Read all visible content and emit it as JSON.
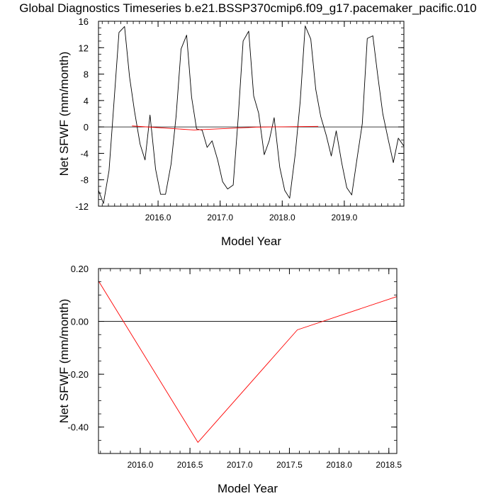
{
  "title": "Global Diagnostics Timeseries b.e21.BSSP370cmip6.f09_g17.pacemaker_pacific.010",
  "colors": {
    "monthly_line": "#000000",
    "annual_line": "#ff0000",
    "zero_line": "#000000"
  },
  "chart_data": [
    {
      "type": "line",
      "xlabel": "Model Year",
      "ylabel": "Net SFWF (mm/month)",
      "xlim": [
        2015.04,
        2019.96
      ],
      "ylim": [
        -12,
        16
      ],
      "xticks": [
        2016.0,
        2017.0,
        2018.0,
        2019.0
      ],
      "xtick_labels": [
        "2016.0",
        "2017.0",
        "2018.0",
        "2019.0"
      ],
      "yticks": [
        -12,
        -8,
        -4,
        0,
        4,
        8,
        12,
        16
      ],
      "ytick_labels": [
        "-12",
        "-8",
        "-4",
        "0",
        "4",
        "8",
        "12",
        "16"
      ],
      "reference_line": 0,
      "grid": false,
      "series": [
        {
          "color": "#000000",
          "x": [
            2015.04,
            2015.12,
            2015.21,
            2015.29,
            2015.37,
            2015.46,
            2015.54,
            2015.62,
            2015.71,
            2015.79,
            2015.87,
            2015.96,
            2016.04,
            2016.12,
            2016.21,
            2016.29,
            2016.37,
            2016.46,
            2016.54,
            2016.62,
            2016.71,
            2016.79,
            2016.87,
            2016.96,
            2017.04,
            2017.12,
            2017.21,
            2017.29,
            2017.37,
            2017.46,
            2017.54,
            2017.62,
            2017.71,
            2017.79,
            2017.87,
            2017.96,
            2018.04,
            2018.12,
            2018.21,
            2018.29,
            2018.37,
            2018.46,
            2018.54,
            2018.62,
            2018.71,
            2018.79,
            2018.87,
            2018.96,
            2019.04,
            2019.12,
            2019.21,
            2019.29,
            2019.37,
            2019.46,
            2019.54,
            2019.62,
            2019.71,
            2019.79,
            2019.87,
            2019.96
          ],
          "values": [
            -9.6,
            -11.6,
            -6.6,
            3.8,
            14.3,
            15.2,
            7.6,
            2.4,
            -2.6,
            -5.0,
            1.8,
            -6.4,
            -10.2,
            -10.2,
            -5.6,
            1.6,
            11.8,
            13.9,
            4.5,
            -0.3,
            -0.5,
            -3.1,
            -2.1,
            -5.0,
            -8.3,
            -9.4,
            -8.8,
            1.3,
            13.0,
            14.5,
            4.7,
            2.1,
            -4.2,
            -2.1,
            1.4,
            -6.1,
            -9.6,
            -10.8,
            -4.1,
            3.9,
            15.3,
            13.3,
            5.7,
            1.6,
            -1.3,
            -4.4,
            -0.6,
            -5.5,
            -9.2,
            -10.3,
            -4.5,
            0.5,
            13.4,
            13.8,
            7.7,
            2.0,
            -2.0,
            -5.4,
            -1.7,
            -2.9
          ]
        },
        {
          "color": "#ff0000",
          "x": [
            2015.58,
            2016.58,
            2017.58,
            2018.58
          ],
          "values": [
            0.15,
            -0.46,
            -0.03,
            0.09
          ]
        }
      ]
    },
    {
      "type": "line",
      "xlabel": "Model Year",
      "ylabel": "Net SFWF (mm/month)",
      "xlim": [
        2015.58,
        2018.58
      ],
      "ylim": [
        -0.5,
        0.2
      ],
      "xticks": [
        2016.0,
        2016.5,
        2017.0,
        2017.5,
        2018.0,
        2018.5
      ],
      "xtick_labels": [
        "2016.0",
        "2016.5",
        "2017.0",
        "2017.5",
        "2018.0",
        "2018.5"
      ],
      "yticks": [
        -0.4,
        -0.2,
        0.0,
        0.2
      ],
      "ytick_labels": [
        "-0.40",
        "-0.20",
        "0.00",
        "0.20"
      ],
      "reference_line": 0,
      "grid": false,
      "series": [
        {
          "color": "#ff0000",
          "x": [
            2015.58,
            2016.58,
            2017.58,
            2018.58
          ],
          "values": [
            0.153,
            -0.458,
            -0.032,
            0.094
          ]
        }
      ]
    }
  ]
}
